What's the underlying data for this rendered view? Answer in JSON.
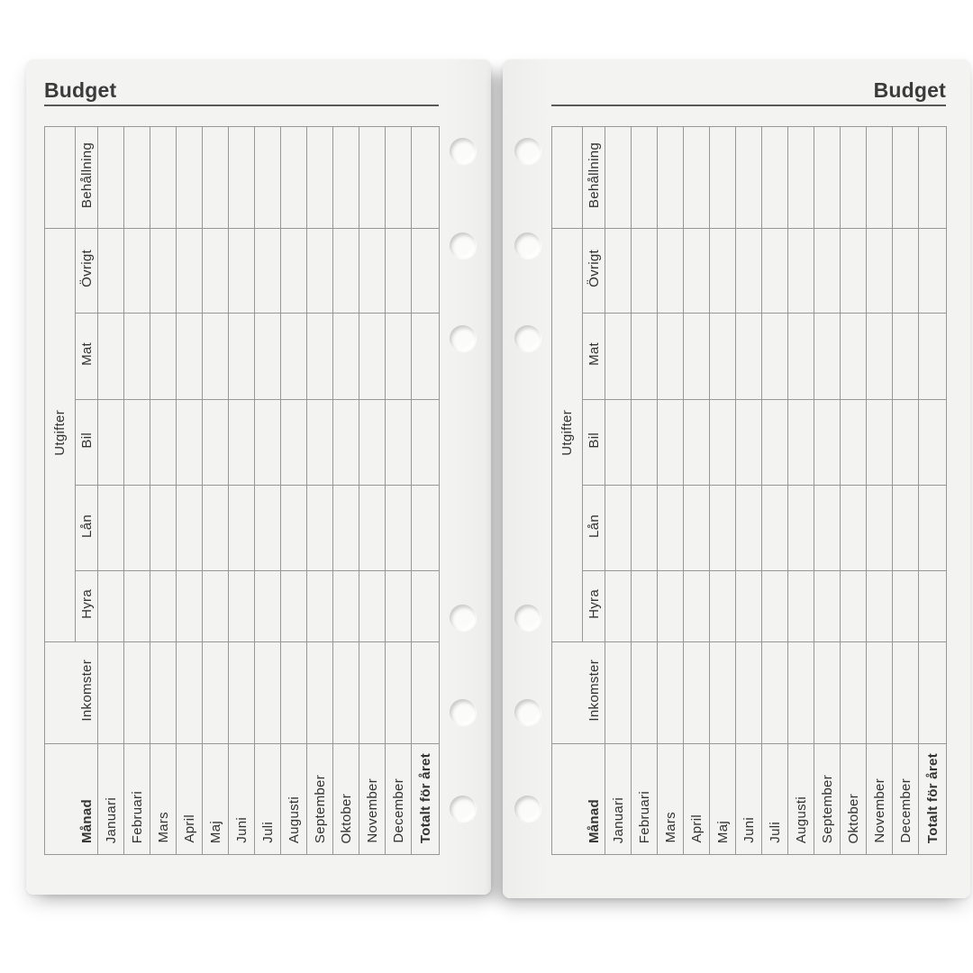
{
  "sheet": {
    "title": "Budget",
    "table": {
      "expense_group_label": "Utgifter",
      "row_headers": [
        "Behållning",
        "Övrigt",
        "Mat",
        "Bil",
        "Lån",
        "Hyra",
        "Inkomster"
      ],
      "month_column_header": "Månad",
      "months": [
        "Januari",
        "Februari",
        "Mars",
        "April",
        "Maj",
        "Juni",
        "Juli",
        "Augusti",
        "September",
        "Oktober",
        "November",
        "December"
      ],
      "total_row_label": "Totalt för året"
    }
  },
  "colors": {
    "background": "#ffffff",
    "paper": "#f2f2f1",
    "grid_line": "#979797",
    "text": "#333333",
    "title_text": "#3b3b3b",
    "title_rule": "#5a5a5a"
  }
}
